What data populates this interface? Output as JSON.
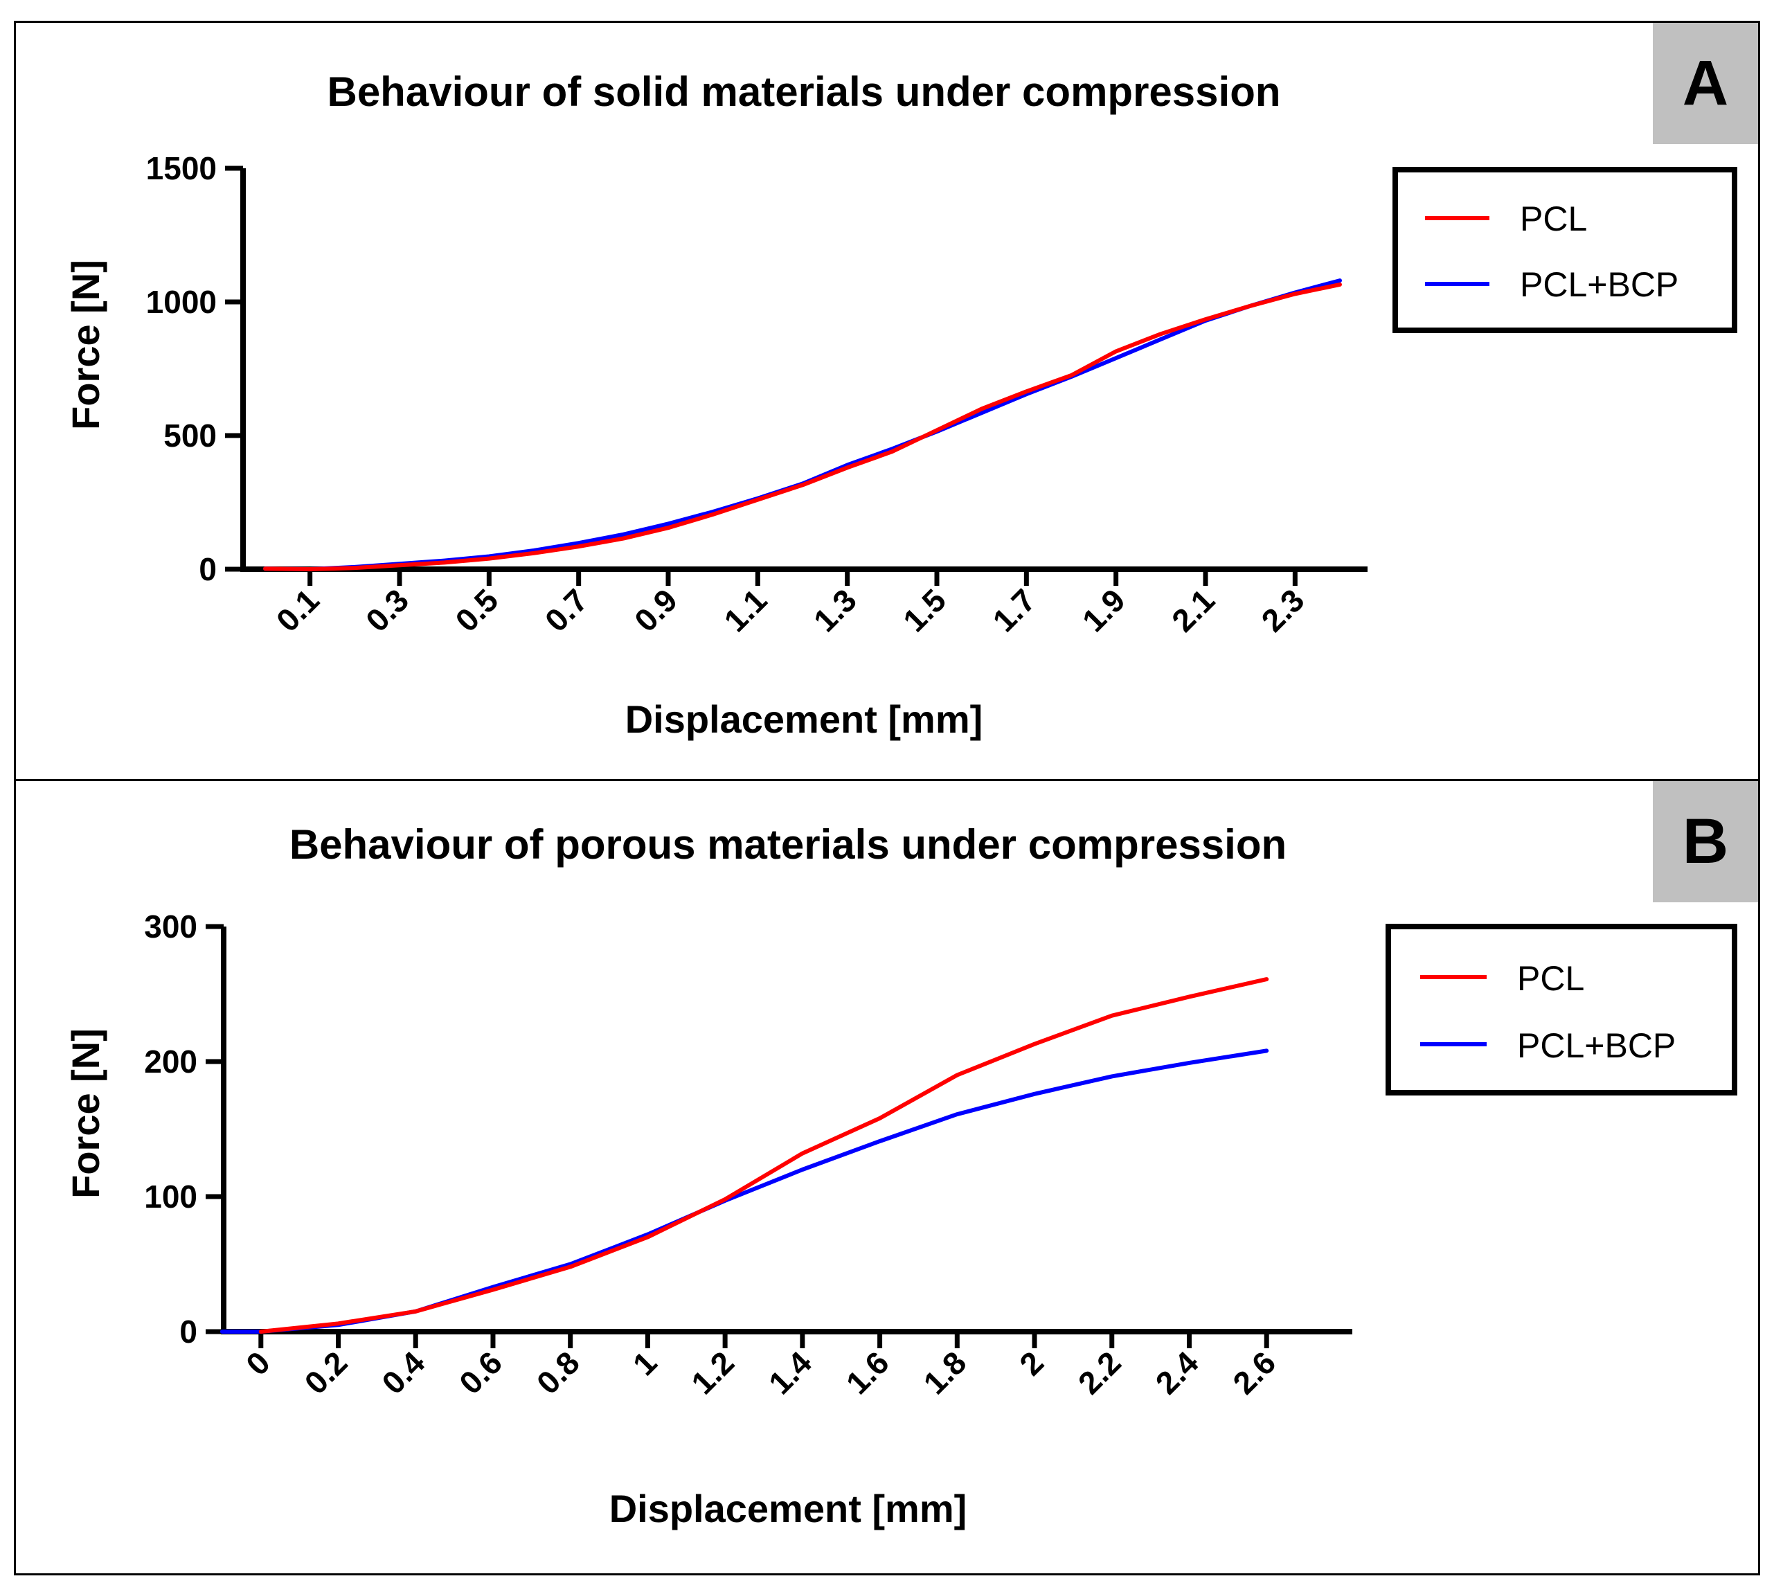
{
  "chart_data": [
    {
      "type": "line",
      "panel_label": "A",
      "title": "Behaviour of solid materials under compression",
      "xlabel": "Displacement [mm]",
      "ylabel": "Force [N]",
      "xlim": [
        0,
        2.4
      ],
      "ylim": [
        0,
        1500
      ],
      "x_ticks": [
        0.1,
        0.3,
        0.5,
        0.7,
        0.9,
        1.1,
        1.3,
        1.5,
        1.7,
        1.9,
        2.1,
        2.3
      ],
      "x_tick_labels": [
        "0.1",
        "0.3",
        "0.5",
        "0.7",
        "0.9",
        "1.1",
        "1.3",
        "1.5",
        "1.7",
        "1.9",
        "2.1",
        "2.3"
      ],
      "y_ticks": [
        0,
        500,
        1000,
        1500
      ],
      "y_tick_labels": [
        "0",
        "500",
        "1000",
        "1500"
      ],
      "legend_position": "top-right",
      "series": [
        {
          "name": "PCL",
          "color": "#ff0000",
          "x": [
            0.0,
            0.1,
            0.2,
            0.3,
            0.4,
            0.5,
            0.6,
            0.7,
            0.8,
            0.9,
            1.0,
            1.1,
            1.2,
            1.3,
            1.4,
            1.5,
            1.6,
            1.7,
            1.8,
            1.9,
            2.0,
            2.1,
            2.2,
            2.3,
            2.4
          ],
          "y": [
            2,
            0,
            5,
            15,
            25,
            40,
            60,
            85,
            115,
            155,
            205,
            260,
            315,
            380,
            440,
            520,
            600,
            665,
            725,
            815,
            880,
            935,
            985,
            1030,
            1065
          ]
        },
        {
          "name": "PCL+BCP",
          "color": "#0000ff",
          "x": [
            0.0,
            0.1,
            0.2,
            0.3,
            0.4,
            0.5,
            0.6,
            0.7,
            0.8,
            0.9,
            1.0,
            1.1,
            1.2,
            1.3,
            1.4,
            1.5,
            1.6,
            1.7,
            1.8,
            1.9,
            2.0,
            2.1,
            2.2,
            2.3,
            2.4
          ],
          "y": [
            2,
            0,
            8,
            20,
            32,
            48,
            70,
            98,
            130,
            170,
            215,
            265,
            320,
            390,
            450,
            515,
            585,
            655,
            720,
            790,
            860,
            930,
            985,
            1035,
            1080
          ]
        }
      ]
    },
    {
      "type": "line",
      "panel_label": "B",
      "title": "Behaviour of porous materials under compression",
      "xlabel": "Displacement [mm]",
      "ylabel": "Force [N]",
      "xlim": [
        -0.15,
        2.75
      ],
      "ylim": [
        0,
        300
      ],
      "x_ticks": [
        0,
        0.2,
        0.4,
        0.6,
        0.8,
        1,
        1.2,
        1.4,
        1.6,
        1.8,
        2,
        2.2,
        2.4,
        2.6
      ],
      "x_tick_labels": [
        "0",
        "0.2",
        "0.4",
        "0.6",
        "0.8",
        "1",
        "1.2",
        "1.4",
        "1.6",
        "1.8",
        "2",
        "2.2",
        "2.4",
        "2.6"
      ],
      "y_ticks": [
        0,
        100,
        200,
        300
      ],
      "y_tick_labels": [
        "0",
        "100",
        "200",
        "300"
      ],
      "legend_position": "top-right",
      "series": [
        {
          "name": "PCL",
          "color": "#ff0000",
          "x": [
            0,
            0.2,
            0.4,
            0.6,
            0.8,
            1.0,
            1.2,
            1.4,
            1.6,
            1.8,
            2.0,
            2.2,
            2.4,
            2.6
          ],
          "y": [
            0,
            6,
            15,
            31,
            48,
            70,
            98,
            132,
            158,
            190,
            213,
            234,
            248,
            261
          ]
        },
        {
          "name": "PCL+BCP",
          "color": "#0000ff",
          "x": [
            -0.1,
            0,
            0.2,
            0.4,
            0.6,
            0.8,
            1.0,
            1.2,
            1.4,
            1.6,
            1.8,
            2.0,
            2.2,
            2.4,
            2.6
          ],
          "y": [
            0,
            0,
            5,
            15,
            33,
            50,
            72,
            97,
            120,
            141,
            161,
            176,
            189,
            199,
            208
          ]
        }
      ]
    }
  ]
}
